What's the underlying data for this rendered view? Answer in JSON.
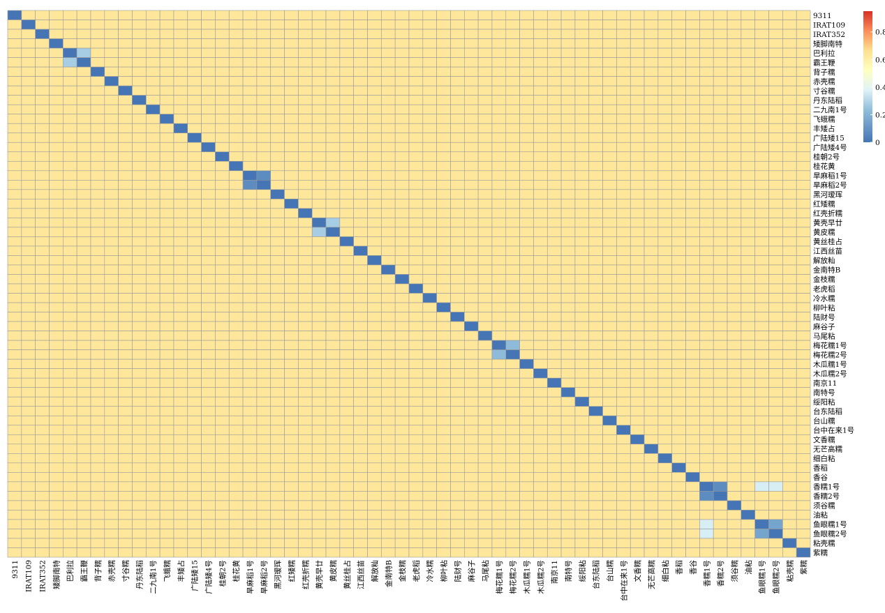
{
  "chart_data": {
    "type": "heatmap",
    "title": "",
    "labels": [
      "9311",
      "IRAT109",
      "IRAT352",
      "矮脚南特",
      "巴利拉",
      "霸王鞭",
      "背子糯",
      "赤壳糯",
      "寸谷糯",
      "丹东陆稻",
      "二九南1号",
      "飞蛾糯",
      "丰矮占",
      "广陆矮15",
      "广陆矮4号",
      "桂朝2号",
      "桂花黄",
      "旱麻稻1号",
      "旱麻稻2号",
      "黑河瑷珲",
      "红矮糯",
      "红壳折糯",
      "黄壳早廿",
      "黄皮糯",
      "黄丝桂占",
      "江西丝苗",
      "解放籼",
      "金南特B",
      "金枝糯",
      "老虎稻",
      "冷水糯",
      "柳叶粘",
      "陆财号",
      "麻谷子",
      "马尾粘",
      "梅花糯1号",
      "梅花糯2号",
      "木瓜糯1号",
      "木瓜糯2号",
      "南京11",
      "南特号",
      "绥阳粘",
      "台东陆稻",
      "台山糯",
      "台中在来1号",
      "文香糯",
      "无芒高糯",
      "细白粘",
      "香稻",
      "香谷",
      "香糯1号",
      "香糯2号",
      "须谷糯",
      "油粘",
      "鱼眼糯1号",
      "鱼眼糯2号",
      "粘壳糯",
      "紫糯"
    ],
    "colorbar": {
      "min": 0,
      "max": 0.95,
      "ticks": [
        "0",
        "0.2",
        "0.4",
        "0.6",
        "0.8"
      ],
      "tick_values": [
        0,
        0.2,
        0.4,
        0.6,
        0.8
      ]
    },
    "colors": [
      "#4575b4",
      "#91bfdb",
      "#e0f3f8",
      "#ffffbf",
      "#fee090",
      "#fc8d59",
      "#d73027"
    ],
    "diagonal_value": 0,
    "z_encoding": "sparse upper-triangle overrides over a default of 0.6; symmetric; diagonal 0",
    "default_value": 0.6,
    "overrides": {
      "4": {
        "5": 0.2
      },
      "17": {
        "18": 0.05
      },
      "22": {
        "23": 0.2
      },
      "35": {
        "36": 0.15
      },
      "50": {
        "51": 0.05,
        "54": 0.3,
        "55": 0.3
      },
      "54": {
        "55": 0.1
      }
    }
  }
}
